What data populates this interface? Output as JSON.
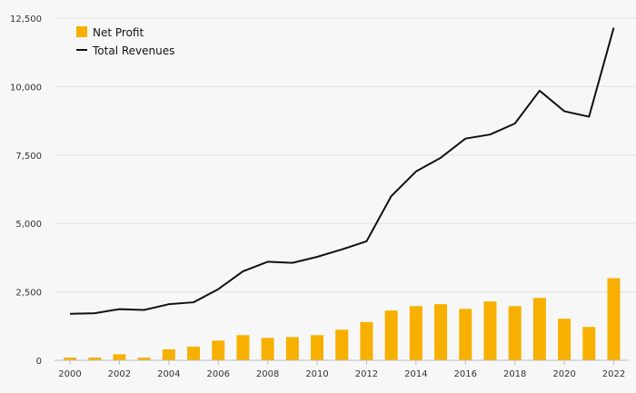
{
  "chart_data": {
    "type": "bar",
    "title": "",
    "xlabel": "",
    "ylabel": "",
    "ylim": [
      0,
      12500
    ],
    "yticks": [
      0,
      2500,
      5000,
      7500,
      10000,
      12500
    ],
    "ytick_labels": [
      "0",
      "2,500",
      "5,000",
      "7,500",
      "10,000",
      "12,500"
    ],
    "x": [
      2000,
      2001,
      2002,
      2003,
      2004,
      2005,
      2006,
      2007,
      2008,
      2009,
      2010,
      2011,
      2012,
      2013,
      2014,
      2015,
      2016,
      2017,
      2018,
      2019,
      2020,
      2021,
      2022
    ],
    "xtick_labels": [
      "2000",
      "2002",
      "2004",
      "2006",
      "2008",
      "2010",
      "2012",
      "2014",
      "2016",
      "2018",
      "2020",
      "2022"
    ],
    "grid": true,
    "legend_position": "top-left",
    "series": [
      {
        "name": "Net Profit",
        "type": "bar",
        "color": "#f7b000",
        "values": [
          100,
          100,
          220,
          100,
          400,
          500,
          720,
          920,
          820,
          850,
          920,
          1120,
          1400,
          1820,
          1980,
          2050,
          1880,
          2150,
          1980,
          2280,
          1520,
          1220,
          3000
        ]
      },
      {
        "name": "Total Revenues",
        "type": "line",
        "color": "#111111",
        "values": [
          1700,
          1720,
          1870,
          1840,
          2050,
          2120,
          2600,
          3250,
          3600,
          3560,
          3780,
          4050,
          4350,
          6000,
          6900,
          7400,
          8100,
          8250,
          8650,
          9850,
          9100,
          8900,
          12150
        ]
      }
    ]
  }
}
